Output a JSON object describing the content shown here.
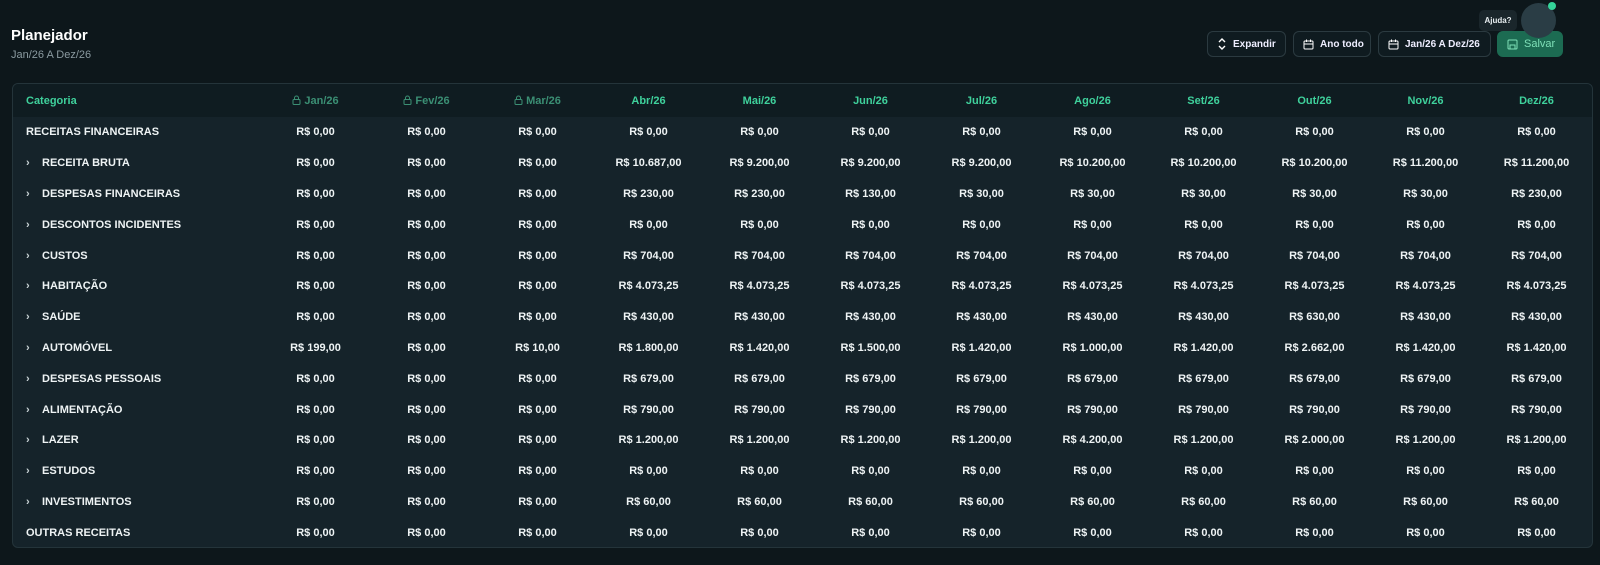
{
  "header": {
    "title": "Planejador",
    "subtitle": "Jan/26 A Dez/26"
  },
  "toolbar": {
    "expand": "Expandir",
    "period": "Ano todo",
    "range": "Jan/26 A Dez/26",
    "save": "Salvar",
    "help": "Ajuda?"
  },
  "table": {
    "category_header": "Categoria",
    "columns": [
      {
        "label": "Jan/26",
        "locked": true
      },
      {
        "label": "Fev/26",
        "locked": true
      },
      {
        "label": "Mar/26",
        "locked": true
      },
      {
        "label": "Abr/26",
        "locked": false
      },
      {
        "label": "Mai/26",
        "locked": false
      },
      {
        "label": "Jun/26",
        "locked": false
      },
      {
        "label": "Jul/26",
        "locked": false
      },
      {
        "label": "Ago/26",
        "locked": false
      },
      {
        "label": "Set/26",
        "locked": false
      },
      {
        "label": "Out/26",
        "locked": false
      },
      {
        "label": "Nov/26",
        "locked": false
      },
      {
        "label": "Dez/26",
        "locked": false
      }
    ],
    "rows": [
      {
        "name": "RECEITAS FINANCEIRAS",
        "expandable": false,
        "values": [
          "R$ 0,00",
          "R$ 0,00",
          "R$ 0,00",
          "R$ 0,00",
          "R$ 0,00",
          "R$ 0,00",
          "R$ 0,00",
          "R$ 0,00",
          "R$ 0,00",
          "R$ 0,00",
          "R$ 0,00",
          "R$ 0,00"
        ]
      },
      {
        "name": "RECEITA BRUTA",
        "expandable": true,
        "values": [
          "R$ 0,00",
          "R$ 0,00",
          "R$ 0,00",
          "R$ 10.687,00",
          "R$ 9.200,00",
          "R$ 9.200,00",
          "R$ 9.200,00",
          "R$ 10.200,00",
          "R$ 10.200,00",
          "R$ 10.200,00",
          "R$ 11.200,00",
          "R$ 11.200,00"
        ]
      },
      {
        "name": "DESPESAS FINANCEIRAS",
        "expandable": true,
        "values": [
          "R$ 0,00",
          "R$ 0,00",
          "R$ 0,00",
          "R$ 230,00",
          "R$ 230,00",
          "R$ 130,00",
          "R$ 30,00",
          "R$ 30,00",
          "R$ 30,00",
          "R$ 30,00",
          "R$ 30,00",
          "R$ 230,00"
        ]
      },
      {
        "name": "DESCONTOS INCIDENTES",
        "expandable": true,
        "values": [
          "R$ 0,00",
          "R$ 0,00",
          "R$ 0,00",
          "R$ 0,00",
          "R$ 0,00",
          "R$ 0,00",
          "R$ 0,00",
          "R$ 0,00",
          "R$ 0,00",
          "R$ 0,00",
          "R$ 0,00",
          "R$ 0,00"
        ]
      },
      {
        "name": "CUSTOS",
        "expandable": true,
        "values": [
          "R$ 0,00",
          "R$ 0,00",
          "R$ 0,00",
          "R$ 704,00",
          "R$ 704,00",
          "R$ 704,00",
          "R$ 704,00",
          "R$ 704,00",
          "R$ 704,00",
          "R$ 704,00",
          "R$ 704,00",
          "R$ 704,00"
        ]
      },
      {
        "name": "HABITAÇÃO",
        "expandable": true,
        "values": [
          "R$ 0,00",
          "R$ 0,00",
          "R$ 0,00",
          "R$ 4.073,25",
          "R$ 4.073,25",
          "R$ 4.073,25",
          "R$ 4.073,25",
          "R$ 4.073,25",
          "R$ 4.073,25",
          "R$ 4.073,25",
          "R$ 4.073,25",
          "R$ 4.073,25"
        ]
      },
      {
        "name": "SAÚDE",
        "expandable": true,
        "values": [
          "R$ 0,00",
          "R$ 0,00",
          "R$ 0,00",
          "R$ 430,00",
          "R$ 430,00",
          "R$ 430,00",
          "R$ 430,00",
          "R$ 430,00",
          "R$ 430,00",
          "R$ 630,00",
          "R$ 430,00",
          "R$ 430,00"
        ]
      },
      {
        "name": "AUTOMÓVEL",
        "expandable": true,
        "values": [
          "R$ 199,00",
          "R$ 0,00",
          "R$ 10,00",
          "R$ 1.800,00",
          "R$ 1.420,00",
          "R$ 1.500,00",
          "R$ 1.420,00",
          "R$ 1.000,00",
          "R$ 1.420,00",
          "R$ 2.662,00",
          "R$ 1.420,00",
          "R$ 1.420,00"
        ]
      },
      {
        "name": "DESPESAS PESSOAIS",
        "expandable": true,
        "values": [
          "R$ 0,00",
          "R$ 0,00",
          "R$ 0,00",
          "R$ 679,00",
          "R$ 679,00",
          "R$ 679,00",
          "R$ 679,00",
          "R$ 679,00",
          "R$ 679,00",
          "R$ 679,00",
          "R$ 679,00",
          "R$ 679,00"
        ]
      },
      {
        "name": "ALIMENTAÇÃO",
        "expandable": true,
        "values": [
          "R$ 0,00",
          "R$ 0,00",
          "R$ 0,00",
          "R$ 790,00",
          "R$ 790,00",
          "R$ 790,00",
          "R$ 790,00",
          "R$ 790,00",
          "R$ 790,00",
          "R$ 790,00",
          "R$ 790,00",
          "R$ 790,00"
        ]
      },
      {
        "name": "LAZER",
        "expandable": true,
        "values": [
          "R$ 0,00",
          "R$ 0,00",
          "R$ 0,00",
          "R$ 1.200,00",
          "R$ 1.200,00",
          "R$ 1.200,00",
          "R$ 1.200,00",
          "R$ 4.200,00",
          "R$ 1.200,00",
          "R$ 2.000,00",
          "R$ 1.200,00",
          "R$ 1.200,00"
        ]
      },
      {
        "name": "ESTUDOS",
        "expandable": true,
        "values": [
          "R$ 0,00",
          "R$ 0,00",
          "R$ 0,00",
          "R$ 0,00",
          "R$ 0,00",
          "R$ 0,00",
          "R$ 0,00",
          "R$ 0,00",
          "R$ 0,00",
          "R$ 0,00",
          "R$ 0,00",
          "R$ 0,00"
        ]
      },
      {
        "name": "INVESTIMENTOS",
        "expandable": true,
        "values": [
          "R$ 0,00",
          "R$ 0,00",
          "R$ 0,00",
          "R$ 60,00",
          "R$ 60,00",
          "R$ 60,00",
          "R$ 60,00",
          "R$ 60,00",
          "R$ 60,00",
          "R$ 60,00",
          "R$ 60,00",
          "R$ 60,00"
        ]
      },
      {
        "name": "OUTRAS RECEITAS",
        "expandable": false,
        "values": [
          "R$ 0,00",
          "R$ 0,00",
          "R$ 0,00",
          "R$ 0,00",
          "R$ 0,00",
          "R$ 0,00",
          "R$ 0,00",
          "R$ 0,00",
          "R$ 0,00",
          "R$ 0,00",
          "R$ 0,00",
          "R$ 0,00"
        ]
      }
    ]
  }
}
